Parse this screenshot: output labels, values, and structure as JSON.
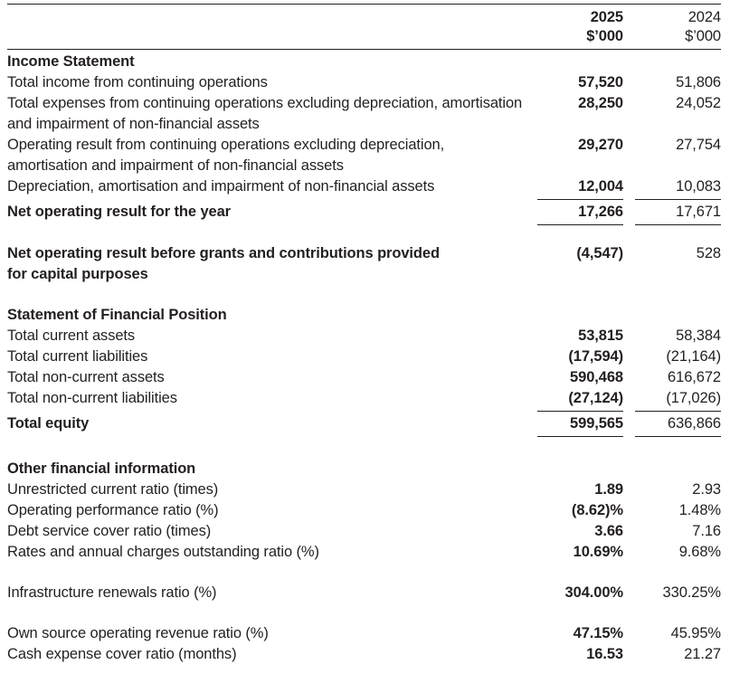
{
  "header": {
    "col2025": {
      "year": "2025",
      "unit": "$’000"
    },
    "col2024": {
      "year": "2024",
      "unit": "$’000"
    }
  },
  "sections": {
    "income": {
      "heading": "Income Statement"
    },
    "position": {
      "heading": "Statement of Financial Position"
    },
    "other": {
      "heading": "Other financial information"
    }
  },
  "rows": {
    "total_income": {
      "label": "Total income from continuing operations",
      "y2025": "57,520",
      "y2024": "51,806"
    },
    "total_expenses": {
      "label": "Total expenses from continuing operations excluding depreciation, amortisation and impairment of non-financial assets",
      "y2025": "28,250",
      "y2024": "24,052"
    },
    "operating_result": {
      "label": "Operating result from continuing operations excluding depreciation, amortisation and impairment of non-financial assets",
      "y2025": "29,270",
      "y2024": "27,754"
    },
    "depreciation": {
      "label": "Depreciation, amortisation and impairment of non-financial assets",
      "y2025": "12,004",
      "y2024": "10,083"
    },
    "net_operating_result": {
      "label": "Net operating result for the year",
      "y2025": "17,266",
      "y2024": "17,671"
    },
    "net_before_grants": {
      "label": "Net operating result before grants and contributions provided for capital purposes",
      "y2025": "(4,547)",
      "y2024": "528"
    },
    "current_assets": {
      "label": "Total current assets",
      "y2025": "53,815",
      "y2024": "58,384"
    },
    "current_liabilities": {
      "label": "Total current liabilities",
      "y2025": "(17,594)",
      "y2024": "(21,164)"
    },
    "noncurrent_assets": {
      "label": "Total non-current assets",
      "y2025": "590,468",
      "y2024": "616,672"
    },
    "noncurrent_liabilities": {
      "label": "Total non-current liabilities",
      "y2025": "(27,124)",
      "y2024": "(17,026)"
    },
    "total_equity": {
      "label": "Total equity",
      "y2025": "599,565",
      "y2024": "636,866"
    },
    "unrestricted_ratio": {
      "label": "Unrestricted current ratio (times)",
      "y2025": "1.89",
      "y2024": "2.93"
    },
    "operating_performance": {
      "label": "Operating performance ratio (%)",
      "y2025": "(8.62)%",
      "y2024": "1.48%"
    },
    "debt_service": {
      "label": "Debt service cover ratio (times)",
      "y2025": "3.66",
      "y2024": "7.16"
    },
    "rates_outstanding": {
      "label": "Rates and annual charges outstanding ratio (%)",
      "y2025": "10.69%",
      "y2024": "9.68%"
    },
    "infrastructure_renewals": {
      "label": "Infrastructure renewals ratio (%)",
      "y2025": "304.00%",
      "y2024": "330.25%"
    },
    "own_source": {
      "label": "Own source operating revenue ratio (%)",
      "y2025": "47.15%",
      "y2024": "45.95%"
    },
    "cash_expense": {
      "label": "Cash expense cover ratio (months)",
      "y2025": "16.53",
      "y2024": "21.27"
    }
  }
}
